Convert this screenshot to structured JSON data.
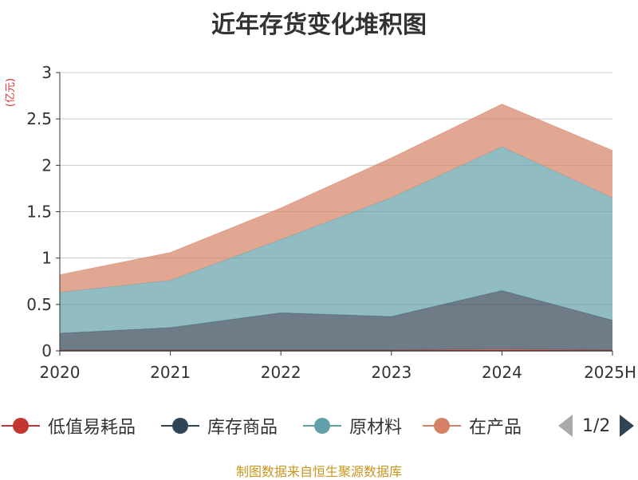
{
  "chart_data": {
    "type": "area",
    "stacked": true,
    "title": "近年存货变化堆积图",
    "ylabel": "(亿元)",
    "categories": [
      "2020",
      "2021",
      "2022",
      "2023",
      "2024",
      "2025H"
    ],
    "ylim": [
      0,
      3
    ],
    "yticks": [
      "0",
      "0.5",
      "1",
      "1.5",
      "2",
      "2.5",
      "3"
    ],
    "grid": true,
    "legend_position": "bottom",
    "series": [
      {
        "name": "低值易耗品",
        "color": "#c23531",
        "values": [
          0.01,
          0.01,
          0.01,
          0.01,
          0.02,
          0.01
        ]
      },
      {
        "name": "库存商品",
        "color": "#2f4554",
        "values": [
          0.18,
          0.24,
          0.4,
          0.36,
          0.63,
          0.32
        ]
      },
      {
        "name": "原材料",
        "color": "#61a0a8",
        "values": [
          0.44,
          0.51,
          0.79,
          1.28,
          1.55,
          1.32
        ]
      },
      {
        "name": "在产品",
        "color": "#d48265",
        "values": [
          0.19,
          0.3,
          0.34,
          0.43,
          0.46,
          0.51
        ]
      }
    ]
  },
  "pager": {
    "text": "1/2"
  },
  "source": "制图数据来自恒生聚源数据库"
}
